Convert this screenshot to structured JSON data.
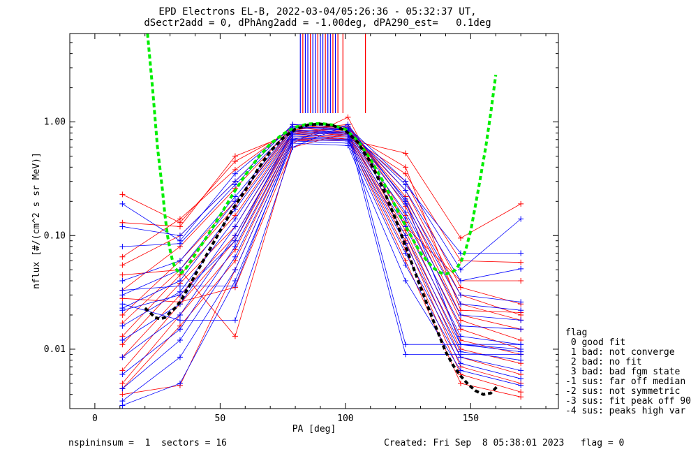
{
  "header": {
    "line1": "EPD Electrons EL-B, 2022-03-04/05:26:36 - 05:32:37 UT,",
    "line2": "dSectr2add = 0, dPhAng2add = -1.00deg, dPA290_est=   0.1deg"
  },
  "footer": {
    "left": "nspininsum =  1  sectors = 16",
    "right": "Created: Fri Sep  8 05:38:01 2023   flag = 0"
  },
  "legend": {
    "title": "flag",
    "items": [
      " 0 good fit",
      " 1 bad: not converge",
      " 2 bad: no fit",
      " 3 bad: bad fgm state",
      "-1 sus: far off median",
      "-2 sus: not symmetric",
      "-3 sus: fit peak off 90",
      "-4 sus: peaks high var"
    ]
  },
  "colors": {
    "red": "#ff0000",
    "blue": "#0000ff",
    "green": "#00ee00",
    "black": "#000000"
  },
  "chart_data": {
    "type": "line",
    "xlabel": "PA [deg]",
    "ylabel": "nflux [#/(cm^2 s sr MeV)]",
    "xlim": [
      -10,
      185
    ],
    "ylim": [
      0.003,
      6
    ],
    "yscale": "log",
    "xticks": [
      0,
      50,
      100,
      150
    ],
    "yticks": [
      {
        "v": 0.01,
        "label": "0.01"
      },
      {
        "v": 0.1,
        "label": "0.10"
      },
      {
        "v": 1.0,
        "label": "1.00"
      }
    ],
    "pa_bins": [
      11,
      34,
      56,
      79,
      101,
      124,
      146,
      170
    ],
    "series": [
      {
        "color": "red",
        "values": [
          0.13,
          0.12,
          0.5,
          0.8,
          0.7,
          0.53,
          0.095,
          0.19
        ]
      },
      {
        "color": "red",
        "values": [
          0.23,
          0.13,
          0.45,
          0.85,
          0.75,
          0.35,
          0.06,
          0.058
        ]
      },
      {
        "color": "red",
        "values": [
          0.065,
          0.14,
          0.38,
          0.9,
          0.8,
          0.3,
          0.035,
          0.025
        ]
      },
      {
        "color": "red",
        "values": [
          0.055,
          0.1,
          0.3,
          0.95,
          0.85,
          0.25,
          0.03,
          0.02
        ]
      },
      {
        "color": "red",
        "values": [
          0.033,
          0.08,
          0.26,
          0.9,
          0.9,
          0.22,
          0.025,
          0.018
        ]
      },
      {
        "color": "red",
        "values": [
          0.02,
          0.06,
          0.2,
          0.88,
          0.92,
          0.2,
          0.02,
          0.015
        ]
      },
      {
        "color": "red",
        "values": [
          0.017,
          0.05,
          0.18,
          0.85,
          0.95,
          0.18,
          0.018,
          0.012
        ]
      },
      {
        "color": "red",
        "values": [
          0.013,
          0.045,
          0.15,
          0.82,
          0.88,
          0.15,
          0.015,
          0.01
        ]
      },
      {
        "color": "red",
        "values": [
          0.011,
          0.038,
          0.12,
          0.8,
          0.85,
          0.13,
          0.012,
          0.009
        ]
      },
      {
        "color": "red",
        "values": [
          0.0085,
          0.03,
          0.1,
          0.78,
          0.8,
          0.11,
          0.01,
          0.0075
        ]
      },
      {
        "color": "red",
        "values": [
          0.0065,
          0.025,
          0.09,
          0.75,
          0.78,
          0.1,
          0.0085,
          0.006
        ]
      },
      {
        "color": "red",
        "values": [
          0.005,
          0.02,
          0.075,
          0.72,
          0.75,
          0.09,
          0.007,
          0.005
        ]
      },
      {
        "color": "red",
        "values": [
          0.0045,
          0.016,
          0.06,
          0.7,
          0.72,
          0.075,
          0.006,
          0.0042
        ]
      },
      {
        "color": "red",
        "values": [
          0.004,
          0.0048,
          0.05,
          0.68,
          0.7,
          0.06,
          0.005,
          0.0038
        ]
      },
      {
        "color": "red",
        "values": [
          0.028,
          0.026,
          0.035,
          0.6,
          0.8,
          0.4,
          0.022,
          0.021
        ]
      },
      {
        "color": "red",
        "values": [
          0.045,
          0.05,
          0.013,
          0.65,
          1.1,
          0.12,
          0.04,
          0.04
        ]
      },
      {
        "color": "blue",
        "values": [
          0.19,
          0.09,
          0.35,
          0.92,
          0.85,
          0.28,
          0.07,
          0.07
        ]
      },
      {
        "color": "blue",
        "values": [
          0.12,
          0.1,
          0.3,
          0.95,
          0.9,
          0.3,
          0.05,
          0.14
        ]
      },
      {
        "color": "blue",
        "values": [
          0.08,
          0.085,
          0.28,
          0.9,
          0.88,
          0.25,
          0.04,
          0.051
        ]
      },
      {
        "color": "blue",
        "values": [
          0.04,
          0.06,
          0.22,
          0.88,
          0.85,
          0.21,
          0.03,
          0.026
        ]
      },
      {
        "color": "blue",
        "values": [
          0.03,
          0.05,
          0.2,
          0.85,
          0.82,
          0.19,
          0.025,
          0.022
        ]
      },
      {
        "color": "blue",
        "values": [
          0.023,
          0.04,
          0.17,
          0.82,
          0.8,
          0.16,
          0.02,
          0.018
        ]
      },
      {
        "color": "blue",
        "values": [
          0.016,
          0.032,
          0.14,
          0.8,
          0.78,
          0.14,
          0.016,
          0.015
        ]
      },
      {
        "color": "blue",
        "values": [
          0.012,
          0.025,
          0.12,
          0.78,
          0.75,
          0.12,
          0.013,
          0.011
        ]
      },
      {
        "color": "blue",
        "values": [
          0.0085,
          0.02,
          0.1,
          0.75,
          0.72,
          0.1,
          0.011,
          0.0095
        ]
      },
      {
        "color": "blue",
        "values": [
          0.006,
          0.015,
          0.08,
          0.72,
          0.7,
          0.085,
          0.0095,
          0.008
        ]
      },
      {
        "color": "blue",
        "values": [
          0.0045,
          0.012,
          0.065,
          0.7,
          0.68,
          0.07,
          0.0085,
          0.0065
        ]
      },
      {
        "color": "blue",
        "values": [
          0.0035,
          0.0085,
          0.05,
          0.68,
          0.65,
          0.055,
          0.0075,
          0.0055
        ]
      },
      {
        "color": "blue",
        "values": [
          0.0032,
          0.005,
          0.04,
          0.65,
          0.62,
          0.04,
          0.0065,
          0.0048
        ]
      },
      {
        "color": "blue",
        "values": [
          0.025,
          0.018,
          0.018,
          0.6,
          0.95,
          0.2,
          0.011,
          0.01
        ]
      },
      {
        "color": "blue",
        "values": [
          0.033,
          0.036,
          0.036,
          0.7,
          0.9,
          0.011,
          0.011,
          0.011
        ]
      },
      {
        "color": "blue",
        "values": [
          0.022,
          0.03,
          0.09,
          0.85,
          0.8,
          0.009,
          0.009,
          0.009
        ]
      }
    ],
    "green_fit": {
      "x": [
        21,
        23,
        25,
        27,
        28,
        29,
        30,
        31,
        32,
        34,
        36,
        40,
        45,
        50,
        55,
        60,
        65,
        70,
        75,
        80,
        85,
        90,
        95,
        100,
        105,
        110,
        115,
        120,
        125,
        130,
        135,
        138,
        140,
        142,
        144,
        146,
        148,
        150,
        153,
        156,
        158,
        160
      ],
      "y": [
        6.0,
        2.0,
        0.6,
        0.25,
        0.15,
        0.1,
        0.075,
        0.06,
        0.052,
        0.046,
        0.05,
        0.068,
        0.1,
        0.15,
        0.23,
        0.34,
        0.48,
        0.64,
        0.78,
        0.9,
        0.96,
        0.97,
        0.94,
        0.86,
        0.68,
        0.47,
        0.3,
        0.18,
        0.11,
        0.07,
        0.052,
        0.047,
        0.046,
        0.047,
        0.05,
        0.058,
        0.075,
        0.11,
        0.25,
        0.6,
        1.2,
        2.6
      ]
    },
    "black_fit": {
      "x": [
        20,
        22,
        24,
        26,
        28,
        30,
        32,
        34,
        36,
        38,
        40,
        45,
        50,
        55,
        60,
        65,
        70,
        75,
        80,
        85,
        90,
        95,
        100,
        105,
        110,
        115,
        120,
        125,
        130,
        135,
        140,
        143,
        146,
        149,
        152,
        155,
        158,
        161
      ],
      "y": [
        0.023,
        0.021,
        0.019,
        0.0185,
        0.019,
        0.021,
        0.023,
        0.026,
        0.031,
        0.037,
        0.045,
        0.07,
        0.11,
        0.17,
        0.25,
        0.38,
        0.55,
        0.72,
        0.86,
        0.94,
        0.96,
        0.93,
        0.84,
        0.66,
        0.44,
        0.26,
        0.14,
        0.07,
        0.035,
        0.018,
        0.0095,
        0.0072,
        0.0058,
        0.0049,
        0.0043,
        0.004,
        0.0041,
        0.0048
      ]
    },
    "top_markers": [
      {
        "x": 82,
        "color": "blue"
      },
      {
        "x": 83,
        "color": "red"
      },
      {
        "x": 84,
        "color": "blue"
      },
      {
        "x": 85,
        "color": "blue"
      },
      {
        "x": 86,
        "color": "red"
      },
      {
        "x": 87,
        "color": "blue"
      },
      {
        "x": 88,
        "color": "blue"
      },
      {
        "x": 89,
        "color": "red"
      },
      {
        "x": 90,
        "color": "blue"
      },
      {
        "x": 91,
        "color": "blue"
      },
      {
        "x": 92,
        "color": "red"
      },
      {
        "x": 93,
        "color": "blue"
      },
      {
        "x": 94,
        "color": "blue"
      },
      {
        "x": 95,
        "color": "red"
      },
      {
        "x": 96,
        "color": "blue"
      },
      {
        "x": 97,
        "color": "red"
      },
      {
        "x": 99,
        "color": "red"
      },
      {
        "x": 108,
        "color": "red"
      }
    ]
  }
}
